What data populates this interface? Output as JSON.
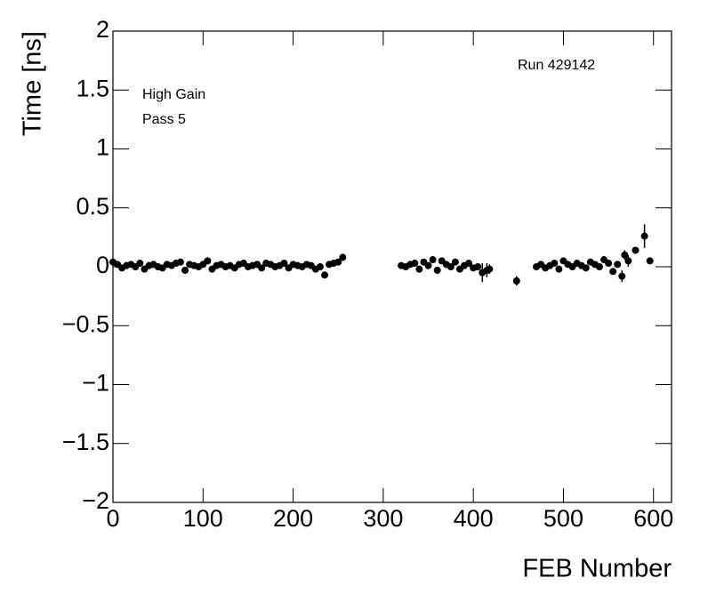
{
  "chart_data": {
    "type": "scatter",
    "xlabel": "FEB Number",
    "ylabel": "Time [ns]",
    "annotations": [
      "High Gain",
      "Pass 5",
      "Run 429142"
    ],
    "xlim": [
      0,
      620
    ],
    "ylim": [
      -2,
      2
    ],
    "xticks": [
      0,
      100,
      200,
      300,
      400,
      500,
      600
    ],
    "yticks": [
      {
        "value": -2,
        "label": "−2"
      },
      {
        "value": -1.5,
        "label": "−1.5"
      },
      {
        "value": -1,
        "label": "−1"
      },
      {
        "value": -0.5,
        "label": "−0.5"
      },
      0,
      0.5,
      1,
      1.5,
      2
    ],
    "color": "#000000",
    "series": [
      {
        "x": [
          0,
          5,
          10,
          15,
          20,
          25,
          30,
          35,
          40,
          45,
          50,
          55,
          60,
          65,
          70,
          75,
          80,
          85,
          90,
          95,
          100,
          105,
          110,
          115,
          120,
          125,
          130,
          135,
          140,
          145,
          150,
          155,
          160,
          165,
          170,
          175,
          180,
          185,
          190,
          195,
          200,
          205,
          210,
          215,
          220,
          225,
          230,
          235,
          240,
          245,
          250,
          255,
          320,
          325,
          330,
          335,
          340,
          345,
          350,
          355,
          360,
          365,
          370,
          375,
          380,
          385,
          390,
          395,
          400,
          405,
          410,
          415,
          418,
          448,
          470,
          475,
          480,
          485,
          490,
          495,
          500,
          505,
          510,
          515,
          520,
          525,
          530,
          535,
          540,
          545,
          550,
          555,
          560,
          565,
          568,
          572,
          580,
          590,
          596
        ],
        "values": [
          0.04,
          0.02,
          -0.01,
          0.01,
          0.02,
          0.0,
          0.03,
          -0.02,
          0.01,
          0.02,
          0.0,
          -0.01,
          0.02,
          0.01,
          0.03,
          0.04,
          -0.03,
          0.02,
          0.01,
          0.0,
          0.02,
          0.05,
          -0.02,
          0.01,
          0.02,
          0.0,
          0.01,
          -0.01,
          0.02,
          0.03,
          0.0,
          0.01,
          0.02,
          -0.01,
          0.03,
          0.02,
          0.0,
          0.01,
          0.03,
          -0.01,
          0.02,
          0.01,
          0.0,
          0.02,
          0.01,
          -0.02,
          0.0,
          -0.07,
          0.02,
          0.03,
          0.04,
          0.08,
          0.01,
          0.0,
          0.02,
          0.03,
          -0.02,
          0.04,
          0.01,
          0.06,
          -0.03,
          0.05,
          0.02,
          0.0,
          0.04,
          -0.02,
          0.01,
          0.03,
          -0.01,
          0.0,
          -0.05,
          -0.03,
          -0.02,
          -0.12,
          0.0,
          0.02,
          -0.01,
          0.01,
          0.03,
          -0.02,
          0.05,
          0.02,
          0.0,
          0.03,
          0.01,
          -0.01,
          0.04,
          0.02,
          0.0,
          0.06,
          0.03,
          -0.04,
          0.02,
          -0.08,
          0.1,
          0.05,
          0.14,
          0.26,
          0.05
        ],
        "errors": [
          0.02,
          0.02,
          0.02,
          0.02,
          0.02,
          0.02,
          0.02,
          0.02,
          0.02,
          0.02,
          0.02,
          0.02,
          0.02,
          0.02,
          0.02,
          0.02,
          0.02,
          0.02,
          0.02,
          0.02,
          0.02,
          0.02,
          0.02,
          0.02,
          0.02,
          0.02,
          0.02,
          0.02,
          0.02,
          0.02,
          0.02,
          0.02,
          0.02,
          0.02,
          0.02,
          0.02,
          0.02,
          0.02,
          0.02,
          0.02,
          0.02,
          0.02,
          0.02,
          0.02,
          0.02,
          0.02,
          0.02,
          0.02,
          0.02,
          0.02,
          0.02,
          0.03,
          0.02,
          0.02,
          0.02,
          0.02,
          0.02,
          0.02,
          0.02,
          0.02,
          0.02,
          0.02,
          0.02,
          0.02,
          0.02,
          0.02,
          0.02,
          0.02,
          0.02,
          0.03,
          0.08,
          0.06,
          0.04,
          0.04,
          0.02,
          0.02,
          0.02,
          0.02,
          0.02,
          0.02,
          0.02,
          0.02,
          0.02,
          0.02,
          0.02,
          0.02,
          0.02,
          0.02,
          0.02,
          0.02,
          0.02,
          0.02,
          0.02,
          0.05,
          0.04,
          0.05,
          0.03,
          0.1,
          0.02
        ]
      }
    ]
  }
}
